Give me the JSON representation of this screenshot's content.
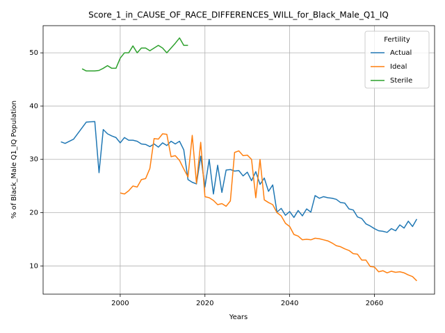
{
  "chart_data": {
    "type": "line",
    "title": "Score_1_in_CAUSE_OF_RACE_DIFFERENCES_WILL_for_Black_Male_Q1_IQ",
    "xlabel": "Years",
    "ylabel": "% of Black_Male Q1_IQ Population",
    "xlim": [
      1981.8,
      2074.2
    ],
    "xticks": [
      2000,
      2020,
      2040,
      2060
    ],
    "ylim": [
      4.7,
      55.1
    ],
    "yticks": [
      10,
      20,
      30,
      40,
      50
    ],
    "grid": true,
    "legend_title": "Fertility",
    "legend_loc": "upper right",
    "series": [
      {
        "name": "Actual",
        "color": "#1f77b4",
        "x": [
          1986,
          1987,
          1989,
          1992,
          1994,
          1995,
          1996,
          1997,
          1998,
          1999,
          2000,
          2001,
          2002,
          2003,
          2004,
          2005,
          2006,
          2007,
          2008,
          2009,
          2010,
          2011,
          2012,
          2013,
          2014,
          2015,
          2016,
          2017,
          2018,
          2019,
          2020,
          2021,
          2022,
          2023,
          2024,
          2025,
          2026,
          2027,
          2028,
          2029,
          2030,
          2031,
          2032,
          2033,
          2034,
          2035,
          2036,
          2037,
          2038,
          2039,
          2040,
          2041,
          2042,
          2043,
          2044,
          2045,
          2046,
          2047,
          2048,
          2049,
          2050,
          2051,
          2052,
          2053,
          2054,
          2055,
          2056,
          2057,
          2058,
          2059,
          2060,
          2061,
          2062,
          2063,
          2064,
          2065,
          2066,
          2067,
          2068,
          2069,
          2070
        ],
        "values": [
          33.3,
          33.0,
          33.8,
          37.0,
          37.1,
          27.5,
          35.6,
          34.8,
          34.4,
          34.1,
          33.1,
          34.1,
          33.6,
          33.6,
          33.4,
          32.9,
          32.8,
          32.4,
          32.9,
          32.3,
          33.1,
          32.6,
          33.4,
          32.9,
          33.4,
          31.8,
          26.2,
          25.7,
          25.4,
          30.6,
          24.8,
          30.0,
          23.5,
          28.9,
          23.8,
          28.0,
          28.1,
          27.8,
          27.9,
          26.9,
          27.6,
          26.0,
          27.7,
          25.3,
          26.5,
          24.0,
          25.2,
          20.1,
          20.8,
          19.5,
          20.2,
          19.1,
          20.4,
          19.4,
          20.7,
          20.1,
          23.2,
          22.7,
          23.0,
          22.8,
          22.7,
          22.5,
          21.9,
          21.8,
          20.7,
          20.5,
          19.2,
          18.9,
          17.9,
          17.5,
          17.0,
          16.6,
          16.5,
          16.3,
          17.0,
          16.6,
          17.7,
          17.1,
          18.4,
          17.4,
          18.8
        ]
      },
      {
        "name": "Ideal",
        "color": "#ff7f0e",
        "x": [
          2000,
          2001,
          2002,
          2003,
          2004,
          2005,
          2006,
          2007,
          2008,
          2009,
          2010,
          2011,
          2012,
          2013,
          2014,
          2015,
          2016,
          2017,
          2018,
          2019,
          2020,
          2021,
          2022,
          2023,
          2024,
          2025,
          2026,
          2027,
          2028,
          2029,
          2030,
          2031,
          2032,
          2033,
          2034,
          2035,
          2036,
          2037,
          2038,
          2039,
          2040,
          2041,
          2042,
          2043,
          2044,
          2045,
          2046,
          2047,
          2048,
          2049,
          2050,
          2051,
          2052,
          2053,
          2054,
          2055,
          2056,
          2057,
          2058,
          2059,
          2060,
          2061,
          2062,
          2063,
          2064,
          2065,
          2066,
          2067,
          2068,
          2069,
          2070
        ],
        "values": [
          23.7,
          23.5,
          24.1,
          25.0,
          24.8,
          26.2,
          26.4,
          28.3,
          33.9,
          33.8,
          34.8,
          34.7,
          30.5,
          30.7,
          29.8,
          28.2,
          26.7,
          34.5,
          25.5,
          33.2,
          23.0,
          22.8,
          22.3,
          21.5,
          21.7,
          21.2,
          22.2,
          31.3,
          31.6,
          30.7,
          30.8,
          30.0,
          22.8,
          30.0,
          22.4,
          21.9,
          21.5,
          20.0,
          19.4,
          18.0,
          17.4,
          15.9,
          15.6,
          14.9,
          15.0,
          14.9,
          15.2,
          15.1,
          14.9,
          14.7,
          14.3,
          13.8,
          13.6,
          13.2,
          12.9,
          12.3,
          12.2,
          11.1,
          11.1,
          9.9,
          9.8,
          8.9,
          9.1,
          8.7,
          9.0,
          8.8,
          8.9,
          8.7,
          8.3,
          8.0,
          7.2
        ]
      },
      {
        "name": "Sterile",
        "color": "#2ca02c",
        "x": [
          1991,
          1992,
          1993,
          1994,
          1995,
          1996,
          1997,
          1998,
          1999,
          2000,
          2001,
          2002,
          2003,
          2004,
          2005,
          2006,
          2007,
          2008,
          2009,
          2010,
          2011,
          2012,
          2013,
          2014,
          2015,
          2016
        ],
        "values": [
          47.0,
          46.6,
          46.6,
          46.6,
          46.7,
          47.1,
          47.6,
          47.1,
          47.1,
          49.0,
          50.0,
          50.0,
          51.3,
          50.0,
          50.9,
          50.9,
          50.4,
          50.9,
          51.4,
          50.9,
          50.0,
          50.9,
          51.8,
          52.8,
          51.4,
          51.4
        ]
      }
    ]
  }
}
